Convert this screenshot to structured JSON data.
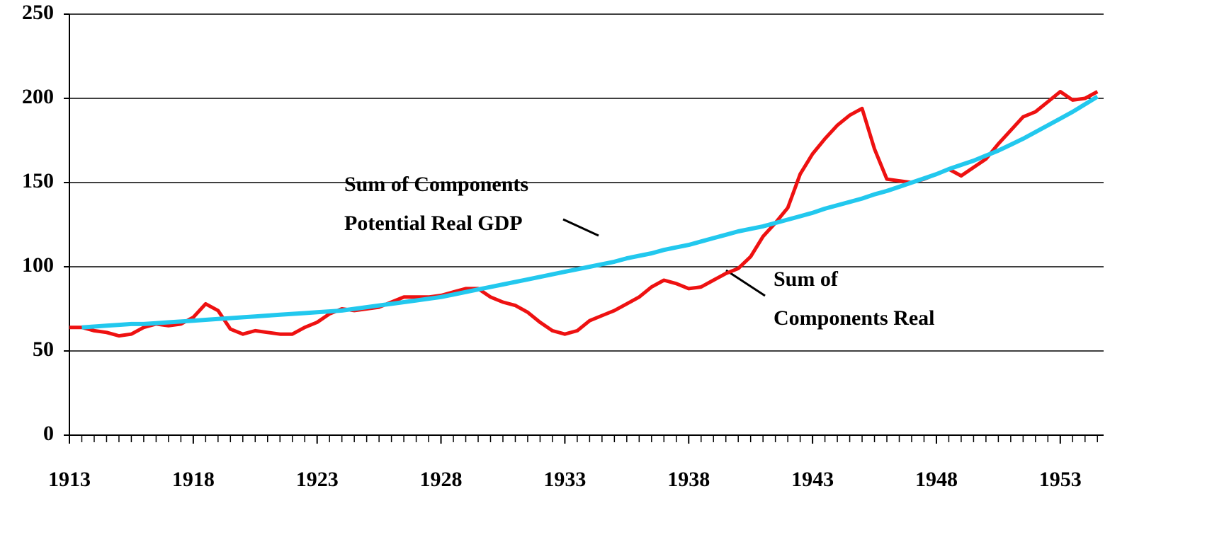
{
  "chart_data": {
    "type": "line",
    "x": [
      1913.0,
      1913.5,
      1914.0,
      1914.5,
      1915.0,
      1915.5,
      1916.0,
      1916.5,
      1917.0,
      1917.5,
      1918.0,
      1918.5,
      1919.0,
      1919.5,
      1920.0,
      1920.5,
      1921.0,
      1921.5,
      1922.0,
      1922.5,
      1923.0,
      1923.5,
      1924.0,
      1924.5,
      1925.0,
      1925.5,
      1926.0,
      1926.5,
      1927.0,
      1927.5,
      1928.0,
      1928.5,
      1929.0,
      1929.5,
      1930.0,
      1930.5,
      1931.0,
      1931.5,
      1932.0,
      1932.5,
      1933.0,
      1933.5,
      1934.0,
      1934.5,
      1935.0,
      1935.5,
      1936.0,
      1936.5,
      1937.0,
      1937.5,
      1938.0,
      1938.5,
      1939.0,
      1939.5,
      1940.0,
      1940.5,
      1941.0,
      1941.5,
      1942.0,
      1942.5,
      1943.0,
      1943.5,
      1944.0,
      1944.5,
      1945.0,
      1945.5,
      1946.0,
      1946.5,
      1947.0,
      1947.5,
      1948.0,
      1948.5,
      1949.0,
      1949.5,
      1950.0,
      1950.5,
      1951.0,
      1951.5,
      1952.0,
      1952.5,
      1953.0,
      1953.5,
      1954.0,
      1954.5
    ],
    "series": [
      {
        "name": "Sum of Components Real",
        "color": "#ee1111",
        "values": [
          64,
          64,
          62,
          61,
          59,
          60,
          64,
          66,
          65,
          66,
          70,
          78,
          74,
          63,
          60,
          62,
          61,
          60,
          60,
          64,
          67,
          72,
          75,
          74,
          75,
          76,
          79,
          82,
          82,
          82,
          83,
          85,
          87,
          87,
          82,
          79,
          77,
          73,
          67,
          62,
          60,
          62,
          68,
          71,
          74,
          78,
          82,
          88,
          92,
          90,
          87,
          88,
          92,
          96,
          99,
          106,
          118,
          126,
          135,
          155,
          167,
          176,
          184,
          190,
          194,
          170,
          152,
          151,
          150,
          152,
          155,
          158,
          154,
          159,
          164,
          173,
          181,
          189,
          192,
          198,
          204,
          199,
          200,
          204
        ]
      },
      {
        "name": "Sum of Components Potential Real GDP",
        "color": "#22c8ee",
        "values": [
          null,
          64,
          64.5,
          65,
          65.5,
          66,
          66,
          66.5,
          67,
          67.5,
          68,
          68.5,
          69,
          69.5,
          70,
          70.5,
          71,
          71.5,
          72,
          72.5,
          73,
          73.5,
          74,
          75,
          76,
          77,
          78,
          79,
          80,
          81,
          82,
          83.5,
          85,
          86.5,
          88,
          89.5,
          91,
          92.5,
          94,
          95.5,
          97,
          98.5,
          100,
          101.5,
          103,
          105,
          106.5,
          108,
          110,
          111.5,
          113,
          115,
          117,
          119,
          121,
          122.5,
          124,
          126,
          128,
          130,
          132,
          134.5,
          136.5,
          138.5,
          140.5,
          143,
          145,
          147.5,
          150,
          152.5,
          155,
          158,
          160.5,
          163,
          166,
          169,
          172.5,
          176,
          180,
          184,
          188,
          192,
          196.5,
          201
        ]
      }
    ],
    "annotations": [
      {
        "lines": [
          "Sum of Components",
          "Potential Real GDP"
        ]
      },
      {
        "lines": [
          "Sum of",
          "Components Real"
        ]
      }
    ],
    "xlim": [
      1913,
      1954.75
    ],
    "xticks": [
      1913,
      1918,
      1923,
      1928,
      1933,
      1938,
      1943,
      1948,
      1953
    ],
    "ylim": [
      0,
      250
    ],
    "yticks": [
      0,
      50,
      100,
      150,
      200,
      250
    ],
    "grid": true
  }
}
